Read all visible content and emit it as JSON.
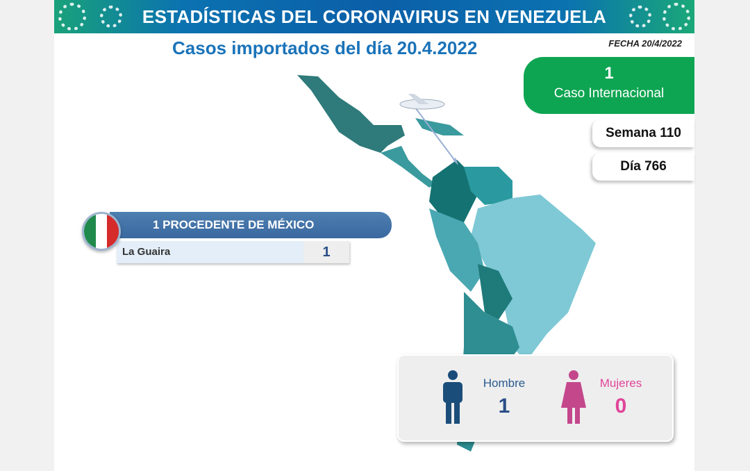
{
  "banner": {
    "title": "ESTADÍSTICAS DEL CORONAVIRUS EN VENEZUELA"
  },
  "subtitle": "Casos importados del día 20.4.2022",
  "fecha": "FECHA 20/4/2022",
  "summary": {
    "count": "1",
    "label": "Caso Internacional",
    "semana": "Semana 110",
    "dia": "Día 766"
  },
  "origin": {
    "title": "1 PROCEDENTE DE MÉXICO",
    "rows": [
      {
        "state": "La Guaira",
        "value": "1"
      }
    ],
    "flag_icon": "mexico-flag-icon"
  },
  "gender": {
    "male_label": "Hombre",
    "male_count": "1",
    "female_label": "Mujeres",
    "female_count": "0"
  },
  "colors": {
    "green": "#0ea552",
    "blue": "#1a73b9",
    "male": "#1b4d7a",
    "female": "#e0459a"
  }
}
